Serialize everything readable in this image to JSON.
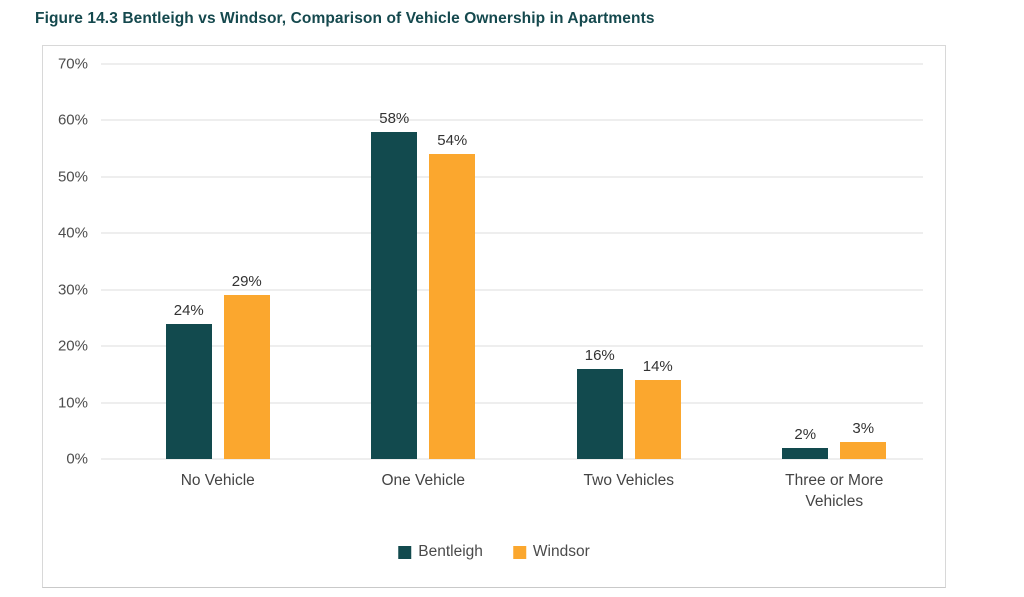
{
  "figure_title": "Figure 14.3 Bentleigh vs Windsor, Comparison of Vehicle Ownership in Apartments",
  "colors": {
    "bentleigh": "#124A4E",
    "windsor": "#FBA72E",
    "title_text": "#15494E",
    "grid_line": "#DCDCDC",
    "tick_text": "#4D4D4D",
    "category_text": "#444444",
    "value_text": "#333333",
    "panel_border": "#D8D8D8"
  },
  "chart_data": {
    "type": "bar",
    "title": "Figure 14.3 Bentleigh vs Windsor, Comparison of Vehicle Ownership in Apartments",
    "categories": [
      "No Vehicle",
      "One Vehicle",
      "Two Vehicles",
      "Three or More Vehicles"
    ],
    "series": [
      {
        "name": "Bentleigh",
        "color": "#124A4E",
        "values": [
          24,
          58,
          16,
          2
        ],
        "value_labels": [
          "24%",
          "58%",
          "16%",
          "2%"
        ]
      },
      {
        "name": "Windsor",
        "color": "#FBA72E",
        "values": [
          29,
          54,
          14,
          3
        ],
        "value_labels": [
          "29%",
          "54%",
          "14%",
          "3%"
        ]
      }
    ],
    "ylim": [
      0,
      70
    ],
    "ytick_step": 10,
    "ytick_labels": [
      "0%",
      "10%",
      "20%",
      "30%",
      "40%",
      "50%",
      "60%",
      "70%"
    ],
    "grid": true,
    "legend_position": "bottom-center"
  },
  "legend": {
    "items": [
      {
        "label": "Bentleigh",
        "color": "#124A4E"
      },
      {
        "label": "Windsor",
        "color": "#FBA72E"
      }
    ]
  }
}
